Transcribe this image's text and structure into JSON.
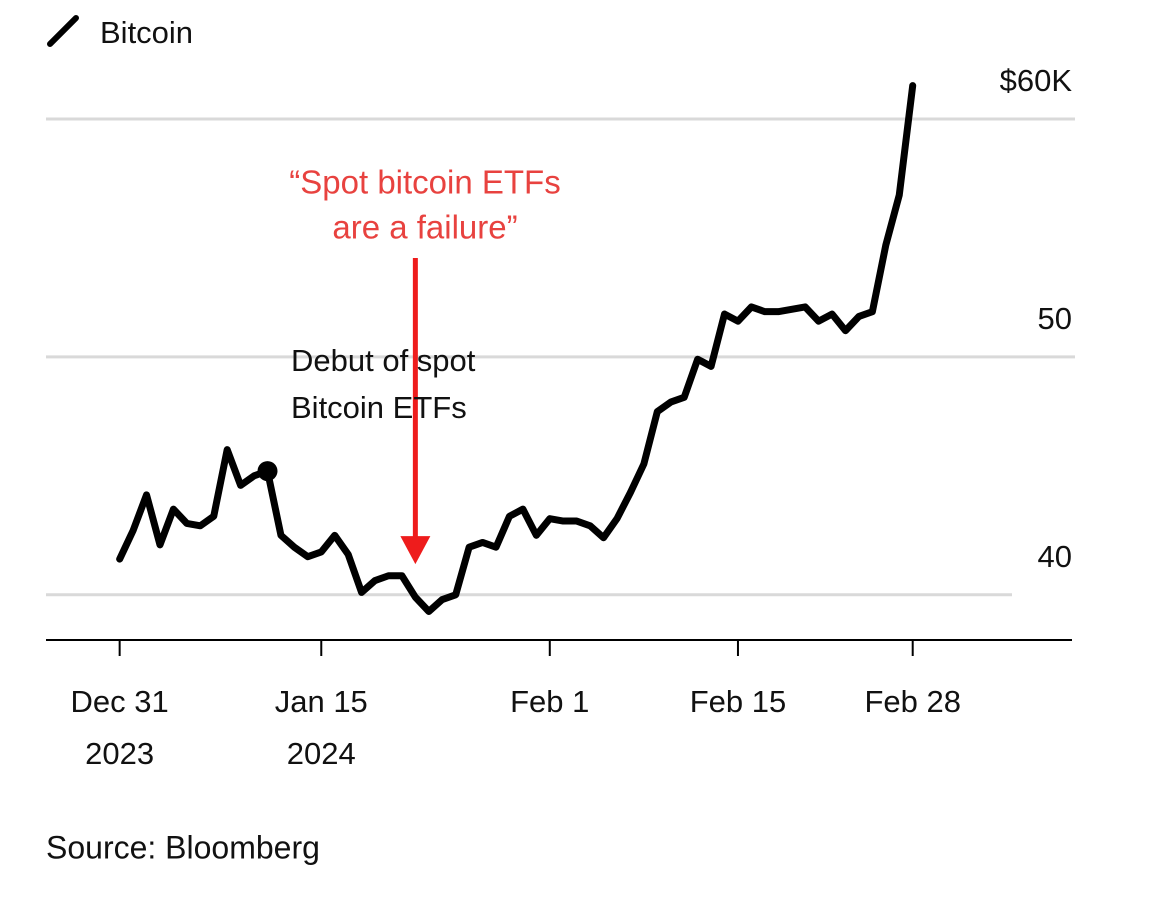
{
  "chart_data": {
    "type": "line",
    "legend": "Bitcoin",
    "source": "Source: Bloomberg",
    "x": [
      "2023-12-31",
      "2024-01-01",
      "2024-01-02",
      "2024-01-03",
      "2024-01-04",
      "2024-01-05",
      "2024-01-06",
      "2024-01-07",
      "2024-01-08",
      "2024-01-09",
      "2024-01-10",
      "2024-01-11",
      "2024-01-12",
      "2024-01-13",
      "2024-01-14",
      "2024-01-15",
      "2024-01-16",
      "2024-01-17",
      "2024-01-18",
      "2024-01-19",
      "2024-01-20",
      "2024-01-21",
      "2024-01-22",
      "2024-01-23",
      "2024-01-24",
      "2024-01-25",
      "2024-01-26",
      "2024-01-27",
      "2024-01-28",
      "2024-01-29",
      "2024-01-30",
      "2024-01-31",
      "2024-02-01",
      "2024-02-02",
      "2024-02-03",
      "2024-02-04",
      "2024-02-05",
      "2024-02-06",
      "2024-02-07",
      "2024-02-08",
      "2024-02-09",
      "2024-02-10",
      "2024-02-11",
      "2024-02-12",
      "2024-02-13",
      "2024-02-14",
      "2024-02-15",
      "2024-02-16",
      "2024-02-17",
      "2024-02-18",
      "2024-02-19",
      "2024-02-20",
      "2024-02-21",
      "2024-02-22",
      "2024-02-23",
      "2024-02-24",
      "2024-02-25",
      "2024-02-26",
      "2024-02-27",
      "2024-02-28"
    ],
    "series": [
      {
        "name": "Bitcoin",
        "color": "#000000",
        "values": [
          41.5,
          42.7,
          44.2,
          42.1,
          43.6,
          43.0,
          42.9,
          43.3,
          46.1,
          44.6,
          45.0,
          45.2,
          42.5,
          42.0,
          41.6,
          41.8,
          42.5,
          41.7,
          40.1,
          40.6,
          40.8,
          40.8,
          39.9,
          39.3,
          39.8,
          40.0,
          42.0,
          42.2,
          42.0,
          43.3,
          43.6,
          42.5,
          43.2,
          43.1,
          43.1,
          42.9,
          42.4,
          43.2,
          44.3,
          45.5,
          47.7,
          48.1,
          48.3,
          49.9,
          49.6,
          51.8,
          51.5,
          52.1,
          51.9,
          51.9,
          52.0,
          52.1,
          51.5,
          51.8,
          51.1,
          51.7,
          51.9,
          54.7,
          56.8,
          61.4
        ]
      }
    ],
    "xlim": [
      "2023-12-25",
      "2024-03-11"
    ],
    "xticks": [
      {
        "value": "2023-12-31",
        "label": [
          "Dec 31",
          "2023"
        ]
      },
      {
        "value": "2024-01-15",
        "label": [
          "Jan 15",
          "2024"
        ]
      },
      {
        "value": "2024-02-01",
        "label": "Feb 1"
      },
      {
        "value": "2024-02-15",
        "label": "Feb 15"
      },
      {
        "value": "2024-02-28",
        "label": "Feb 28"
      }
    ],
    "ylim": [
      38.1,
      65
    ],
    "yticks": [
      40,
      50,
      {
        "value": 60,
        "label": "$60K"
      }
    ],
    "grid": true,
    "annotations": [
      {
        "text": [
          "“Spot bitcoin ETFs",
          "are a failure”"
        ],
        "color": "#e8423f",
        "arrow_color": "#ee1c1c",
        "x": "2024-01-22"
      },
      {
        "text": [
          "Debut of spot",
          "Bitcoin ETFs"
        ],
        "color": "#111111",
        "x": "2024-01-11"
      }
    ]
  }
}
